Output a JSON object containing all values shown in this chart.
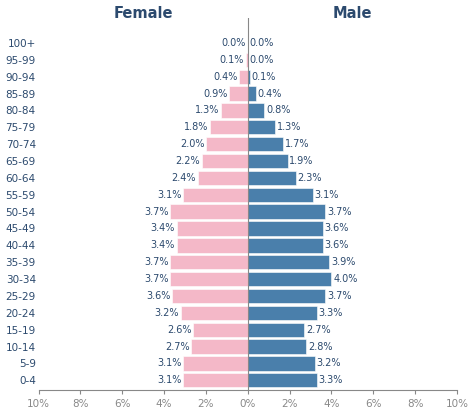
{
  "age_groups": [
    "0-4",
    "5-9",
    "10-14",
    "15-19",
    "20-24",
    "25-29",
    "30-34",
    "35-39",
    "40-44",
    "45-49",
    "50-54",
    "55-59",
    "60-64",
    "65-69",
    "70-74",
    "75-79",
    "80-84",
    "85-89",
    "90-94",
    "95-99",
    "100+"
  ],
  "female": [
    3.1,
    3.1,
    2.7,
    2.6,
    3.2,
    3.6,
    3.7,
    3.7,
    3.4,
    3.4,
    3.7,
    3.1,
    2.4,
    2.2,
    2.0,
    1.8,
    1.3,
    0.9,
    0.4,
    0.1,
    0.0
  ],
  "male": [
    3.3,
    3.2,
    2.8,
    2.7,
    3.3,
    3.7,
    4.0,
    3.9,
    3.6,
    3.6,
    3.7,
    3.1,
    2.3,
    1.9,
    1.7,
    1.3,
    0.8,
    0.4,
    0.1,
    0.0,
    0.0
  ],
  "female_color": "#f4b8c8",
  "male_color": "#4a7fab",
  "female_label": "Female",
  "male_label": "Male",
  "xlim": 10,
  "bar_height": 0.85,
  "background_color": "#ffffff",
  "text_color": "#2c4a6e",
  "axis_color": "#888888",
  "fontsize_yticks": 7.5,
  "fontsize_header": 10.5,
  "fontsize_pct": 7.0,
  "fontsize_xticks": 7.5
}
